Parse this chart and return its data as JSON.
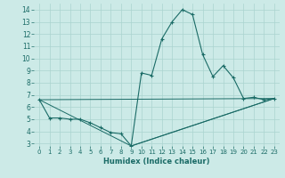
{
  "xlabel": "Humidex (Indice chaleur)",
  "bg_color": "#cceae7",
  "grid_color": "#aad4d0",
  "line_color": "#1a6b66",
  "xlim": [
    -0.5,
    23.5
  ],
  "ylim": [
    2.8,
    14.5
  ],
  "xticks": [
    0,
    1,
    2,
    3,
    4,
    5,
    6,
    7,
    8,
    9,
    10,
    11,
    12,
    13,
    14,
    15,
    16,
    17,
    18,
    19,
    20,
    21,
    22,
    23
  ],
  "yticks": [
    3,
    4,
    5,
    6,
    7,
    8,
    9,
    10,
    11,
    12,
    13,
    14
  ],
  "line1_x": [
    0,
    1,
    2,
    3,
    4,
    5,
    6,
    7,
    8,
    9,
    10,
    11,
    12,
    13,
    14,
    15,
    16,
    17,
    18,
    19,
    20,
    21,
    22,
    23
  ],
  "line1_y": [
    6.6,
    5.1,
    5.1,
    5.0,
    5.0,
    4.7,
    4.3,
    3.9,
    3.8,
    2.8,
    8.8,
    8.6,
    11.6,
    13.0,
    14.0,
    13.6,
    10.3,
    8.5,
    9.4,
    8.4,
    6.7,
    6.8,
    6.6,
    6.7
  ],
  "line2_x": [
    0,
    23
  ],
  "line2_y": [
    6.6,
    6.7
  ],
  "line3_x": [
    0,
    9,
    23
  ],
  "line3_y": [
    6.6,
    2.8,
    6.7
  ],
  "line4_x": [
    9,
    23
  ],
  "line4_y": [
    2.8,
    6.7
  ]
}
